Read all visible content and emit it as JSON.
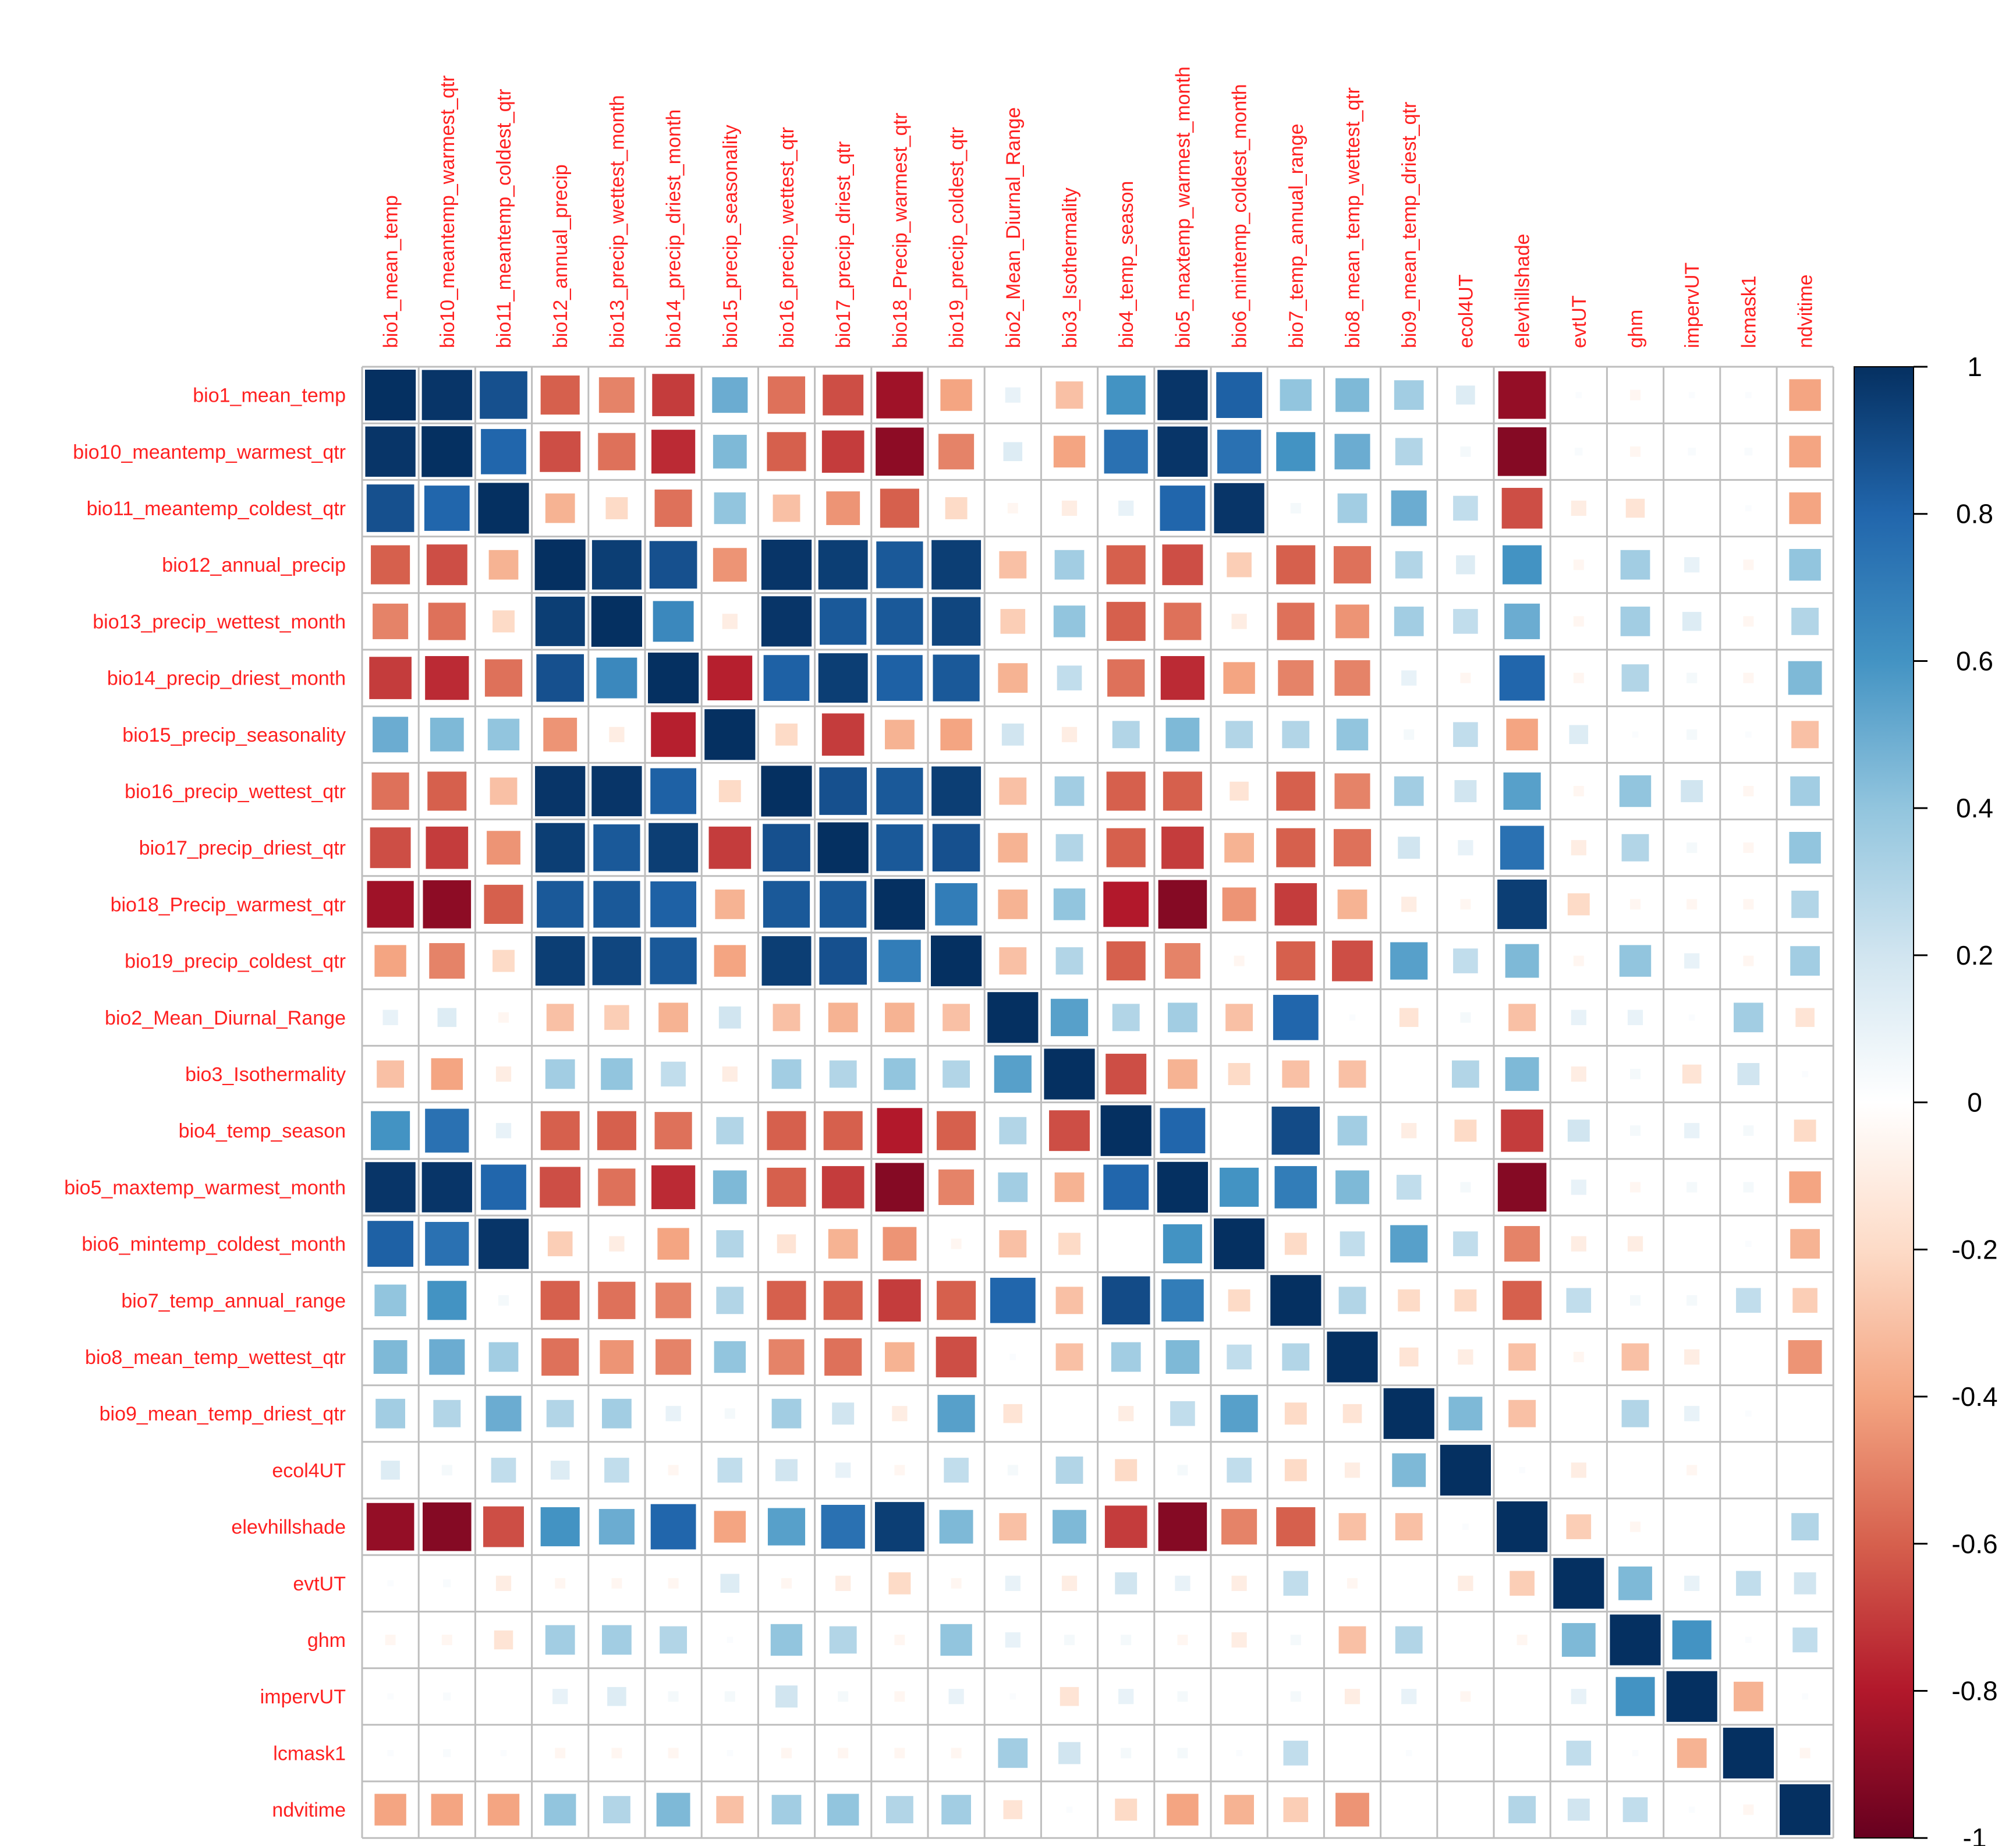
{
  "chart_data": {
    "type": "heatmap",
    "title": "",
    "method": "square",
    "variables": [
      "bio1_mean_temp",
      "bio10_meantemp_warmest_qtr",
      "bio11_meantemp_coldest_qtr",
      "bio12_annual_precip",
      "bio13_precip_wettest_month",
      "bio14_precip_driest_month",
      "bio15_precip_seasonality",
      "bio16_precip_wettest_qtr",
      "bio17_precip_driest_qtr",
      "bio18_Precip_warmest_qtr",
      "bio19_precip_coldest_qtr",
      "bio2_Mean_Diurnal_Range",
      "bio3_Isothermality",
      "bio4_temp_season",
      "bio5_maxtemp_warmest_month",
      "bio6_mintemp_coldest_month",
      "bio7_temp_annual_range",
      "bio8_mean_temp_wettest_qtr",
      "bio9_mean_temp_driest_qtr",
      "ecol4UT",
      "elevhillshade",
      "evtUT",
      "ghm",
      "impervUT",
      "lcmask1",
      "ndvitime"
    ],
    "matrix": [
      [
        1.0,
        0.98,
        0.88,
        -0.6,
        -0.5,
        -0.7,
        0.5,
        -0.55,
        -0.65,
        -0.85,
        -0.4,
        0.1,
        -0.3,
        0.6,
        0.98,
        0.82,
        0.4,
        0.45,
        0.35,
        0.15,
        -0.88,
        0.02,
        -0.05,
        0.02,
        0.02,
        -0.4
      ],
      [
        0.98,
        1.0,
        0.8,
        -0.65,
        -0.55,
        -0.75,
        0.45,
        -0.6,
        -0.7,
        -0.9,
        -0.5,
        0.15,
        -0.4,
        0.75,
        0.98,
        0.75,
        0.6,
        0.5,
        0.3,
        0.05,
        -0.92,
        0.03,
        -0.05,
        0.03,
        0.03,
        -0.4
      ],
      [
        0.88,
        0.8,
        1.0,
        -0.35,
        -0.2,
        -0.55,
        0.4,
        -0.3,
        -0.45,
        -0.6,
        -0.2,
        -0.05,
        -0.1,
        0.1,
        0.8,
        0.98,
        0.05,
        0.35,
        0.5,
        0.25,
        -0.65,
        -0.1,
        -0.15,
        0.0,
        0.02,
        -0.4
      ],
      [
        -0.6,
        -0.65,
        -0.35,
        1.0,
        0.95,
        0.88,
        -0.45,
        0.98,
        0.95,
        0.85,
        0.95,
        -0.3,
        0.35,
        -0.6,
        -0.65,
        -0.25,
        -0.6,
        -0.55,
        0.3,
        0.15,
        0.6,
        -0.05,
        0.35,
        0.1,
        -0.05,
        0.4
      ],
      [
        -0.5,
        -0.55,
        -0.2,
        0.95,
        1.0,
        0.65,
        -0.1,
        0.98,
        0.85,
        0.85,
        0.92,
        -0.25,
        0.4,
        -0.6,
        -0.55,
        -0.1,
        -0.55,
        -0.45,
        0.35,
        0.25,
        0.5,
        -0.05,
        0.35,
        0.15,
        -0.05,
        0.3
      ],
      [
        -0.7,
        -0.75,
        -0.55,
        0.88,
        0.65,
        1.0,
        -0.78,
        0.82,
        0.95,
        0.82,
        0.85,
        -0.35,
        0.25,
        -0.55,
        -0.75,
        -0.4,
        -0.5,
        -0.5,
        0.1,
        -0.05,
        0.8,
        -0.05,
        0.3,
        0.05,
        -0.05,
        0.45
      ],
      [
        0.5,
        0.45,
        0.4,
        -0.45,
        -0.1,
        -0.78,
        1.0,
        -0.2,
        -0.7,
        -0.35,
        -0.4,
        0.2,
        -0.1,
        0.3,
        0.45,
        0.3,
        0.3,
        0.4,
        0.05,
        0.25,
        -0.4,
        0.15,
        0.02,
        0.05,
        0.02,
        -0.3
      ],
      [
        -0.55,
        -0.6,
        -0.3,
        0.98,
        0.98,
        0.82,
        -0.2,
        1.0,
        0.88,
        0.85,
        0.95,
        -0.3,
        0.35,
        -0.6,
        -0.6,
        -0.15,
        -0.6,
        -0.5,
        0.35,
        0.2,
        0.55,
        -0.05,
        0.4,
        0.2,
        -0.05,
        0.35
      ],
      [
        -0.65,
        -0.7,
        -0.45,
        0.95,
        0.85,
        0.95,
        -0.7,
        0.88,
        1.0,
        0.85,
        0.88,
        -0.35,
        0.3,
        -0.6,
        -0.7,
        -0.35,
        -0.6,
        -0.55,
        0.2,
        0.1,
        0.75,
        -0.1,
        0.3,
        0.05,
        -0.05,
        0.4
      ],
      [
        -0.85,
        -0.9,
        -0.6,
        0.85,
        0.85,
        0.82,
        -0.35,
        0.85,
        0.85,
        1.0,
        0.7,
        -0.35,
        0.4,
        -0.8,
        -0.92,
        -0.45,
        -0.7,
        -0.35,
        -0.1,
        -0.05,
        0.95,
        -0.2,
        -0.05,
        -0.05,
        -0.05,
        0.3
      ],
      [
        -0.4,
        -0.5,
        -0.2,
        0.95,
        0.92,
        0.85,
        -0.4,
        0.95,
        0.88,
        0.7,
        1.0,
        -0.3,
        0.3,
        -0.6,
        -0.5,
        -0.05,
        -0.6,
        -0.65,
        0.55,
        0.25,
        0.45,
        -0.05,
        0.4,
        0.1,
        -0.05,
        0.35
      ],
      [
        0.1,
        0.15,
        -0.05,
        -0.3,
        -0.25,
        -0.35,
        0.2,
        -0.3,
        -0.35,
        -0.35,
        -0.3,
        1.0,
        0.55,
        0.3,
        0.35,
        -0.3,
        0.8,
        0.02,
        -0.15,
        0.05,
        -0.3,
        0.1,
        0.1,
        0.02,
        0.35,
        -0.15
      ],
      [
        -0.3,
        -0.4,
        -0.1,
        0.35,
        0.4,
        0.25,
        -0.1,
        0.35,
        0.3,
        0.4,
        0.3,
        0.55,
        1.0,
        -0.65,
        -0.35,
        -0.2,
        -0.3,
        -0.3,
        0.0,
        0.3,
        0.45,
        -0.1,
        0.05,
        -0.15,
        0.2,
        0.02
      ],
      [
        0.6,
        0.75,
        0.1,
        -0.6,
        -0.6,
        -0.55,
        0.3,
        -0.6,
        -0.6,
        -0.8,
        -0.6,
        0.3,
        -0.65,
        1.0,
        0.8,
        0.0,
        0.9,
        0.35,
        -0.1,
        -0.2,
        -0.7,
        0.2,
        0.05,
        0.1,
        0.05,
        -0.2
      ],
      [
        0.98,
        0.98,
        0.8,
        -0.65,
        -0.55,
        -0.75,
        0.45,
        -0.6,
        -0.7,
        -0.92,
        -0.5,
        0.35,
        -0.35,
        0.8,
        1.0,
        0.6,
        0.7,
        0.45,
        0.25,
        0.05,
        -0.92,
        0.1,
        -0.05,
        0.05,
        0.05,
        -0.4
      ],
      [
        0.82,
        0.75,
        0.98,
        -0.25,
        -0.1,
        -0.4,
        0.3,
        -0.15,
        -0.35,
        -0.45,
        -0.05,
        -0.3,
        -0.2,
        0.0,
        0.6,
        1.0,
        -0.2,
        0.25,
        0.55,
        0.25,
        -0.5,
        -0.1,
        -0.1,
        0.0,
        0.02,
        -0.35
      ],
      [
        0.4,
        0.6,
        0.05,
        -0.6,
        -0.55,
        -0.5,
        0.3,
        -0.6,
        -0.6,
        -0.7,
        -0.6,
        0.8,
        -0.3,
        0.9,
        0.7,
        -0.2,
        1.0,
        0.3,
        -0.2,
        -0.2,
        -0.6,
        0.25,
        0.05,
        0.05,
        0.25,
        -0.25
      ],
      [
        0.45,
        0.5,
        0.35,
        -0.55,
        -0.45,
        -0.5,
        0.4,
        -0.5,
        -0.55,
        -0.35,
        -0.65,
        0.02,
        -0.3,
        0.35,
        0.45,
        0.25,
        0.3,
        1.0,
        -0.15,
        -0.1,
        -0.3,
        -0.05,
        -0.3,
        -0.1,
        0.0,
        -0.45
      ],
      [
        0.35,
        0.3,
        0.5,
        0.3,
        0.35,
        0.1,
        0.05,
        0.35,
        0.2,
        -0.1,
        0.55,
        -0.15,
        0.0,
        -0.1,
        0.25,
        0.55,
        -0.2,
        -0.15,
        1.0,
        0.45,
        -0.3,
        0.0,
        0.3,
        0.1,
        0.02,
        0.0
      ],
      [
        0.15,
        0.05,
        0.25,
        0.15,
        0.25,
        -0.05,
        0.25,
        0.2,
        0.1,
        -0.05,
        0.25,
        0.05,
        0.3,
        -0.2,
        0.05,
        0.25,
        -0.2,
        -0.1,
        0.45,
        1.0,
        0.02,
        -0.1,
        0.0,
        -0.05,
        0.0,
        0.0
      ],
      [
        -0.88,
        -0.92,
        -0.65,
        0.6,
        0.5,
        0.8,
        -0.4,
        0.55,
        0.75,
        0.95,
        0.45,
        -0.3,
        0.45,
        -0.7,
        -0.92,
        -0.5,
        -0.6,
        -0.3,
        -0.3,
        0.02,
        1.0,
        -0.25,
        -0.05,
        0.0,
        0.0,
        0.3
      ],
      [
        0.02,
        0.03,
        -0.1,
        -0.05,
        -0.05,
        -0.05,
        0.15,
        -0.05,
        -0.1,
        -0.2,
        -0.05,
        0.1,
        -0.1,
        0.2,
        0.1,
        -0.1,
        0.25,
        -0.05,
        0.0,
        -0.1,
        -0.25,
        1.0,
        0.45,
        0.1,
        0.25,
        0.2
      ],
      [
        -0.05,
        -0.05,
        -0.15,
        0.35,
        0.35,
        0.3,
        0.02,
        0.4,
        0.3,
        -0.05,
        0.4,
        0.1,
        0.05,
        0.05,
        -0.05,
        -0.1,
        0.05,
        -0.3,
        0.3,
        0.0,
        -0.05,
        0.45,
        1.0,
        0.6,
        0.02,
        0.25
      ],
      [
        0.02,
        0.03,
        0.0,
        0.1,
        0.15,
        0.05,
        0.05,
        0.2,
        0.05,
        -0.05,
        0.1,
        0.02,
        -0.15,
        0.1,
        0.05,
        0.0,
        0.05,
        -0.1,
        0.1,
        -0.05,
        0.0,
        0.1,
        0.6,
        1.0,
        -0.35,
        0.02
      ],
      [
        0.02,
        0.03,
        0.02,
        -0.05,
        -0.05,
        -0.05,
        0.02,
        -0.05,
        -0.05,
        -0.05,
        -0.05,
        0.35,
        0.2,
        0.05,
        0.05,
        0.02,
        0.25,
        0.0,
        0.02,
        0.0,
        0.0,
        0.25,
        0.02,
        -0.35,
        1.0,
        -0.05
      ],
      [
        -0.4,
        -0.4,
        -0.4,
        0.4,
        0.3,
        0.45,
        -0.3,
        0.35,
        0.4,
        0.3,
        0.35,
        -0.15,
        0.02,
        -0.2,
        -0.4,
        -0.35,
        -0.25,
        -0.45,
        0.0,
        0.0,
        0.3,
        0.2,
        0.25,
        0.02,
        -0.05,
        1.0
      ]
    ],
    "legend": {
      "position": "right",
      "min": -1,
      "max": 1,
      "ticks": [
        "1",
        "0.8",
        "0.6",
        "0.4",
        "0.2",
        "0",
        "-0.2",
        "-0.4",
        "-0.6",
        "-0.8",
        "-1"
      ],
      "colors": [
        "#67001f",
        "#b2182b",
        "#d6604d",
        "#f4a582",
        "#fddbc7",
        "#ffffff",
        "#d1e5f0",
        "#92c5de",
        "#4393c3",
        "#2166ac",
        "#053061"
      ]
    },
    "label_color": "#ff2020",
    "grid_color": "#bebebe"
  }
}
